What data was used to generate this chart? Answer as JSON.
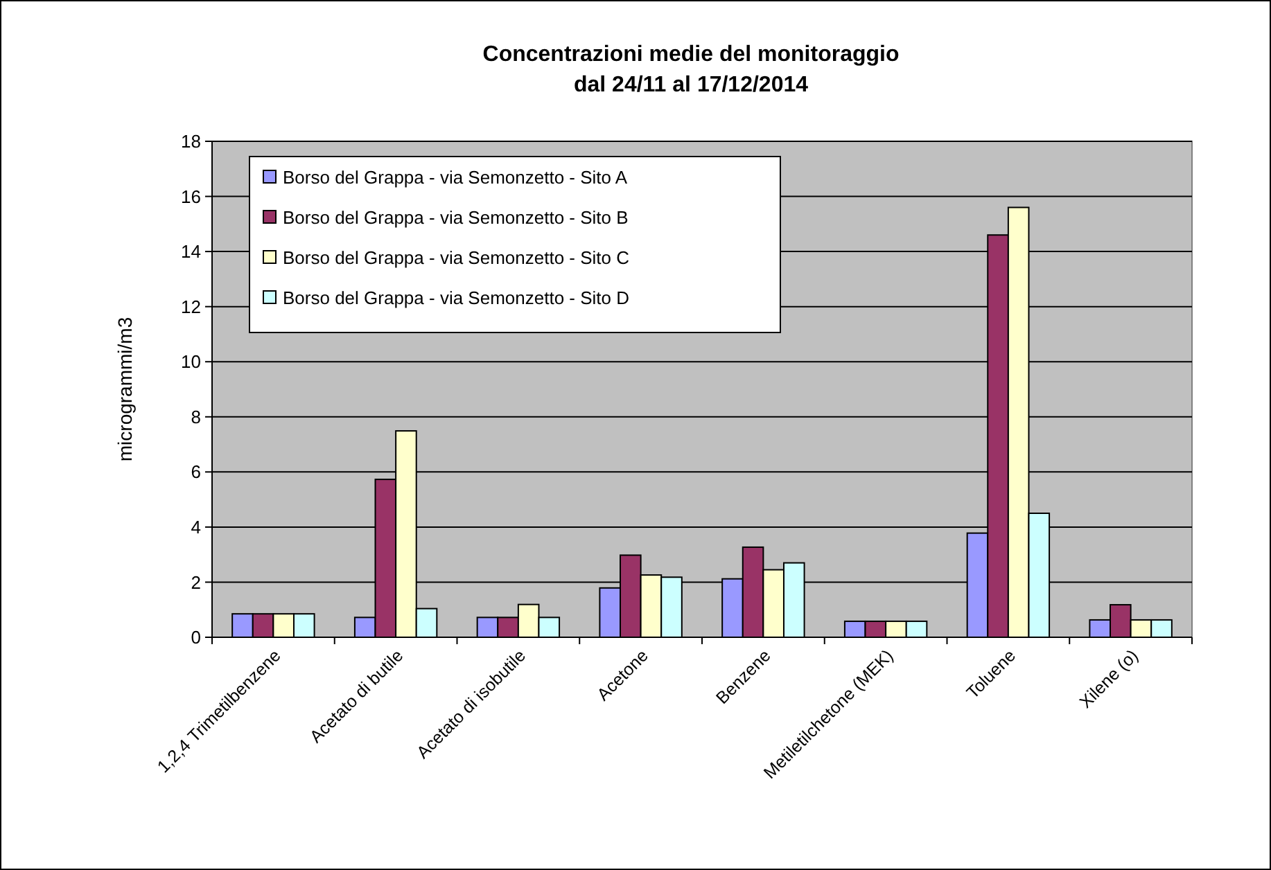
{
  "chart_data": {
    "type": "bar",
    "title": "Concentrazioni medie del monitoraggio\ndal 24/11 al 17/12/2014",
    "ylabel": "microgrammi/m3",
    "categories": [
      "1,2,4 Trimetilbenzene",
      "Acetato di butile",
      "Acetato di isobutile",
      "Acetone",
      "Benzene",
      "Metiletilchetone (MEK)",
      "Toluene",
      "Xilene (o)"
    ],
    "series": [
      {
        "name": "Borso del Grappa - via Semonzetto - Sito A",
        "color": "#9999ff",
        "values": [
          0.85,
          0.72,
          0.72,
          1.79,
          2.12,
          0.58,
          3.78,
          0.63
        ]
      },
      {
        "name": "Borso del Grappa - via Semonzetto - Sito B",
        "color": "#993366",
        "values": [
          0.85,
          5.73,
          0.72,
          2.98,
          3.27,
          0.58,
          14.6,
          1.18
        ]
      },
      {
        "name": "Borso del Grappa - via Semonzetto - Sito C",
        "color": "#ffffcc",
        "values": [
          0.85,
          7.49,
          1.19,
          2.26,
          2.45,
          0.58,
          15.6,
          0.63
        ]
      },
      {
        "name": "Borso del Grappa - via Semonzetto - Sito D",
        "color": "#ccffff",
        "values": [
          0.85,
          1.04,
          0.72,
          2.18,
          2.7,
          0.58,
          4.5,
          0.63
        ]
      }
    ],
    "ylim": [
      0,
      18
    ],
    "yticks": [
      0,
      2,
      4,
      6,
      8,
      10,
      12,
      14,
      16,
      18
    ],
    "grid": "y",
    "legend": "top left"
  }
}
